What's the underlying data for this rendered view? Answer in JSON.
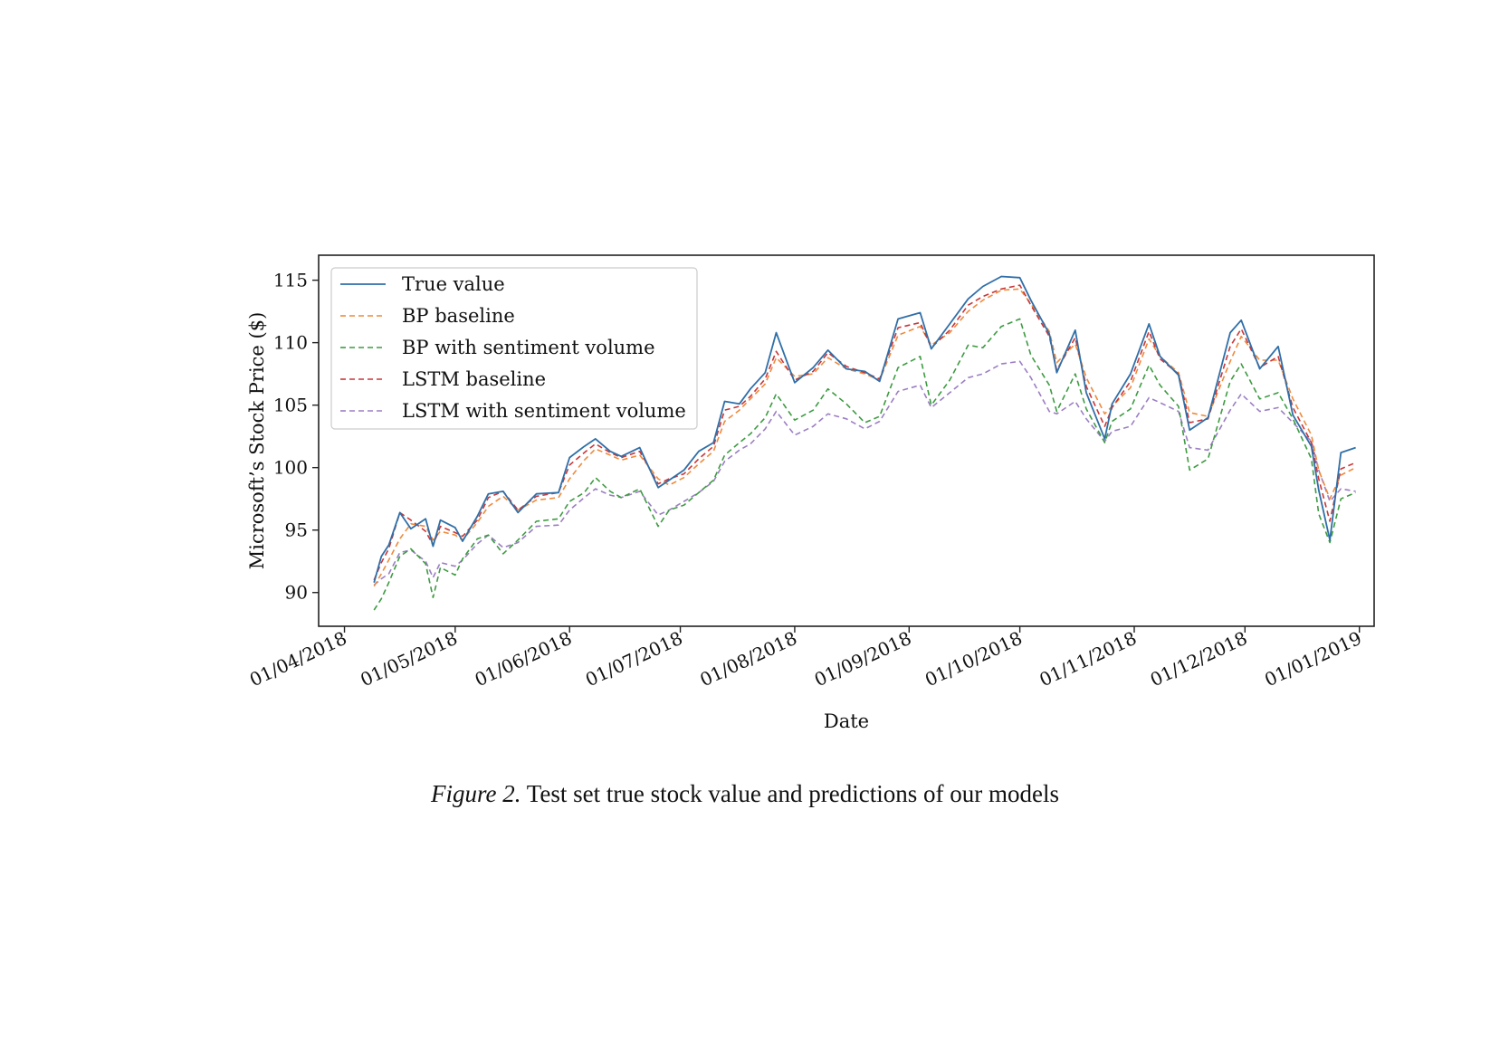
{
  "caption": {
    "figure_label": "Figure 2.",
    "text": "Test set true stock value and predictions of our models"
  },
  "chart_data": {
    "type": "line",
    "xlabel": "Date",
    "ylabel": "Microsoft’s Stock Price ($)",
    "x_range": [
      "2018-03-25",
      "2019-01-05"
    ],
    "ylim": [
      87.3,
      117.0
    ],
    "x_ticks": [
      {
        "date": "2018-04-01",
        "label": "01/04/2018"
      },
      {
        "date": "2018-05-01",
        "label": "01/05/2018"
      },
      {
        "date": "2018-06-01",
        "label": "01/06/2018"
      },
      {
        "date": "2018-07-01",
        "label": "01/07/2018"
      },
      {
        "date": "2018-08-01",
        "label": "01/08/2018"
      },
      {
        "date": "2018-09-01",
        "label": "01/09/2018"
      },
      {
        "date": "2018-10-01",
        "label": "01/10/2018"
      },
      {
        "date": "2018-11-01",
        "label": "01/11/2018"
      },
      {
        "date": "2018-12-01",
        "label": "01/12/2018"
      },
      {
        "date": "2019-01-01",
        "label": "01/01/2019"
      }
    ],
    "y_ticks": [
      90,
      95,
      100,
      105,
      110,
      115
    ],
    "grid": false,
    "legend_position": "top-left",
    "x": [
      "2018-04-09",
      "2018-04-11",
      "2018-04-13",
      "2018-04-16",
      "2018-04-19",
      "2018-04-23",
      "2018-04-25",
      "2018-04-27",
      "2018-05-01",
      "2018-05-03",
      "2018-05-07",
      "2018-05-10",
      "2018-05-14",
      "2018-05-18",
      "2018-05-23",
      "2018-05-29",
      "2018-06-01",
      "2018-06-05",
      "2018-06-08",
      "2018-06-12",
      "2018-06-15",
      "2018-06-20",
      "2018-06-25",
      "2018-06-28",
      "2018-07-02",
      "2018-07-06",
      "2018-07-10",
      "2018-07-13",
      "2018-07-17",
      "2018-07-20",
      "2018-07-24",
      "2018-07-27",
      "2018-08-01",
      "2018-08-06",
      "2018-08-10",
      "2018-08-15",
      "2018-08-20",
      "2018-08-24",
      "2018-08-29",
      "2018-09-04",
      "2018-09-07",
      "2018-09-12",
      "2018-09-17",
      "2018-09-21",
      "2018-09-26",
      "2018-10-01",
      "2018-10-04",
      "2018-10-09",
      "2018-10-11",
      "2018-10-16",
      "2018-10-19",
      "2018-10-24",
      "2018-10-26",
      "2018-10-31",
      "2018-11-05",
      "2018-11-08",
      "2018-11-13",
      "2018-11-16",
      "2018-11-21",
      "2018-11-27",
      "2018-11-30",
      "2018-12-05",
      "2018-12-10",
      "2018-12-14",
      "2018-12-19",
      "2018-12-21",
      "2018-12-24",
      "2018-12-27",
      "2018-12-31"
    ],
    "series": [
      {
        "name": "True value",
        "style": "solid",
        "color": "#2f6fa8",
        "values": [
          90.8,
          92.9,
          93.8,
          96.4,
          95.1,
          95.9,
          93.7,
          95.8,
          95.2,
          94.1,
          96.1,
          97.9,
          98.1,
          96.4,
          97.9,
          98.0,
          100.8,
          101.7,
          102.3,
          101.3,
          100.9,
          101.6,
          98.4,
          99.0,
          99.8,
          101.3,
          102.0,
          105.3,
          105.1,
          106.3,
          107.6,
          110.8,
          106.8,
          108.0,
          109.4,
          107.9,
          107.7,
          106.9,
          111.9,
          112.4,
          109.5,
          111.5,
          113.5,
          114.5,
          115.3,
          115.2,
          113.4,
          110.7,
          107.6,
          111.0,
          106.0,
          102.3,
          105.1,
          107.5,
          111.5,
          108.9,
          107.4,
          103.0,
          104.0,
          110.8,
          111.8,
          107.9,
          109.7,
          104.2,
          101.7,
          98.2,
          94.2,
          101.2,
          101.6
        ]
      },
      {
        "name": "BP baseline",
        "style": "dashed",
        "color": "#ee8a3c",
        "values": [
          90.5,
          91.5,
          92.6,
          94.3,
          95.5,
          95.3,
          94.2,
          94.9,
          94.6,
          94.2,
          95.6,
          96.9,
          97.7,
          96.6,
          97.4,
          97.6,
          99.1,
          100.6,
          101.5,
          101.0,
          100.6,
          101.0,
          99.1,
          98.6,
          99.2,
          100.3,
          101.3,
          103.7,
          104.6,
          105.5,
          106.7,
          108.8,
          107.3,
          107.5,
          108.8,
          107.9,
          107.5,
          107.0,
          110.6,
          111.3,
          109.8,
          110.8,
          112.5,
          113.4,
          114.2,
          114.3,
          113.1,
          110.9,
          108.4,
          109.9,
          107.2,
          104.3,
          104.9,
          106.4,
          110.3,
          108.9,
          107.6,
          104.4,
          104.1,
          108.5,
          110.5,
          108.6,
          108.6,
          105.5,
          102.6,
          99.8,
          97.5,
          99.4,
          100.0
        ]
      },
      {
        "name": "BP with sentiment volume",
        "style": "dashed",
        "color": "#3d9b41",
        "values": [
          88.6,
          89.5,
          90.8,
          92.9,
          93.5,
          92.3,
          89.6,
          92.0,
          91.4,
          92.7,
          94.3,
          94.6,
          93.1,
          94.2,
          95.7,
          95.9,
          97.3,
          98.0,
          99.2,
          98.1,
          97.6,
          98.3,
          95.3,
          96.6,
          97.0,
          98.0,
          99.0,
          101.0,
          102.0,
          102.7,
          104.0,
          105.9,
          103.8,
          104.6,
          106.3,
          105.1,
          103.6,
          104.1,
          108.0,
          108.9,
          105.0,
          107.0,
          109.8,
          109.6,
          111.3,
          111.9,
          109.0,
          106.6,
          104.5,
          107.5,
          104.7,
          102.0,
          103.7,
          104.7,
          108.2,
          106.6,
          104.9,
          99.8,
          100.7,
          106.9,
          108.3,
          105.5,
          106.0,
          103.9,
          100.7,
          96.3,
          94.0,
          97.5,
          98.0
        ]
      },
      {
        "name": "LSTM baseline",
        "style": "dashed",
        "color": "#c8373a",
        "values": [
          91.0,
          92.4,
          93.5,
          96.4,
          95.8,
          94.9,
          93.8,
          95.3,
          94.8,
          94.5,
          95.8,
          97.6,
          98.1,
          96.6,
          97.7,
          98.0,
          100.2,
          101.2,
          101.9,
          101.2,
          100.8,
          101.3,
          98.7,
          99.1,
          99.5,
          100.7,
          101.7,
          104.6,
          104.9,
          105.7,
          107.1,
          109.3,
          107.0,
          107.7,
          109.2,
          108.1,
          107.6,
          107.1,
          111.2,
          111.6,
          109.6,
          111.0,
          113.0,
          113.7,
          114.3,
          114.6,
          113.0,
          110.5,
          107.8,
          110.4,
          106.5,
          103.3,
          104.8,
          106.9,
          110.9,
          108.7,
          107.5,
          103.6,
          103.9,
          109.7,
          111.1,
          108.0,
          108.9,
          104.8,
          102.0,
          99.1,
          95.7,
          99.9,
          100.4
        ]
      },
      {
        "name": "LSTM with sentiment volume",
        "style": "dashed",
        "color": "#9b7ec3",
        "values": [
          90.6,
          91.1,
          91.5,
          93.2,
          93.4,
          92.5,
          91.2,
          92.4,
          92.1,
          92.6,
          93.9,
          94.6,
          93.6,
          94.0,
          95.3,
          95.4,
          96.6,
          97.6,
          98.3,
          97.8,
          97.6,
          98.1,
          96.2,
          96.6,
          97.3,
          98.0,
          98.9,
          100.5,
          101.4,
          101.9,
          103.1,
          104.5,
          102.6,
          103.3,
          104.3,
          103.9,
          103.1,
          103.7,
          106.1,
          106.6,
          104.8,
          106.0,
          107.2,
          107.5,
          108.3,
          108.5,
          107.2,
          104.5,
          104.3,
          105.3,
          103.9,
          102.1,
          102.9,
          103.3,
          105.6,
          105.2,
          104.5,
          101.6,
          101.4,
          104.6,
          105.9,
          104.5,
          104.8,
          103.6,
          102.1,
          99.8,
          97.3,
          98.3,
          98.1
        ]
      }
    ]
  }
}
